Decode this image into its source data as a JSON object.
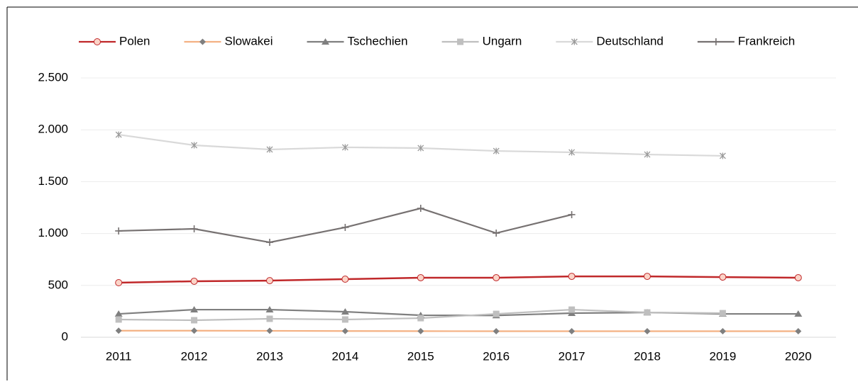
{
  "chart_data": {
    "type": "line",
    "categories": [
      "2011",
      "2012",
      "2013",
      "2014",
      "2015",
      "2016",
      "2017",
      "2018",
      "2019",
      "2020"
    ],
    "series": [
      {
        "name": "Polen",
        "color": "#c0282a",
        "marker": "circle",
        "values": [
          526,
          540,
          546,
          560,
          574,
          574,
          587,
          587,
          580,
          574
        ]
      },
      {
        "name": "Slowakei",
        "color": "#f4b183",
        "marker": "diamond",
        "values": [
          63,
          63,
          62,
          60,
          59,
          58,
          58,
          58,
          58,
          58
        ]
      },
      {
        "name": "Tschechien",
        "color": "#7f7f7f",
        "marker": "triangle",
        "values": [
          225,
          266,
          266,
          246,
          212,
          210,
          232,
          239,
          225,
          225
        ]
      },
      {
        "name": "Ungarn",
        "color": "#bfbfbf",
        "marker": "square",
        "values": [
          171,
          164,
          178,
          171,
          184,
          225,
          266,
          239,
          232,
          null
        ]
      },
      {
        "name": "Deutschland",
        "color": "#d9d9d9",
        "marker": "x",
        "values": [
          1953,
          1851,
          1810,
          1831,
          1824,
          1796,
          1783,
          1762,
          1749,
          null
        ]
      },
      {
        "name": "Frankreich",
        "color": "#767171",
        "marker": "plus",
        "values": [
          1025,
          1045,
          915,
          1059,
          1243,
          1004,
          1182,
          null,
          null,
          null
        ]
      }
    ],
    "ylim": [
      0,
      2500
    ],
    "yticks": [
      0,
      500,
      {
        "value": 1000,
        "label": "1.000"
      },
      {
        "value": 1500,
        "label": "1.500"
      },
      {
        "value": 2000,
        "label": "2.000"
      },
      {
        "value": 2500,
        "label": "2.500"
      }
    ],
    "grid": true,
    "legend": "top"
  }
}
